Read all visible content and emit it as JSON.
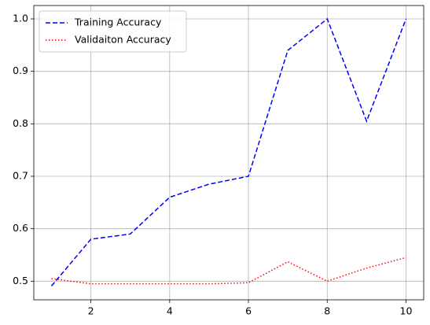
{
  "chart_data": {
    "type": "line",
    "x": [
      1,
      2,
      3,
      4,
      5,
      6,
      7,
      8,
      9,
      10
    ],
    "series": [
      {
        "name": "Training Accuracy",
        "color": "#0000ff",
        "dash": "dashed",
        "values": [
          0.491,
          0.58,
          0.59,
          0.66,
          0.685,
          0.7,
          0.94,
          1.0,
          0.805,
          1.0
        ]
      },
      {
        "name": "Validaiton Accuracy",
        "color": "#ff0000",
        "dash": "dotted",
        "values": [
          0.505,
          0.495,
          0.495,
          0.495,
          0.495,
          0.497,
          0.537,
          0.5,
          0.525,
          0.545
        ]
      }
    ],
    "xlim": [
      0.55,
      10.45
    ],
    "xticks": [
      2,
      4,
      6,
      8,
      10
    ],
    "ylim": [
      0.4645,
      1.0255
    ],
    "yticks": [
      0.5,
      0.6,
      0.7,
      0.8,
      0.9,
      {
        "value": 1,
        "label": "1.0"
      }
    ],
    "grid": true,
    "legend": "upper-left"
  }
}
